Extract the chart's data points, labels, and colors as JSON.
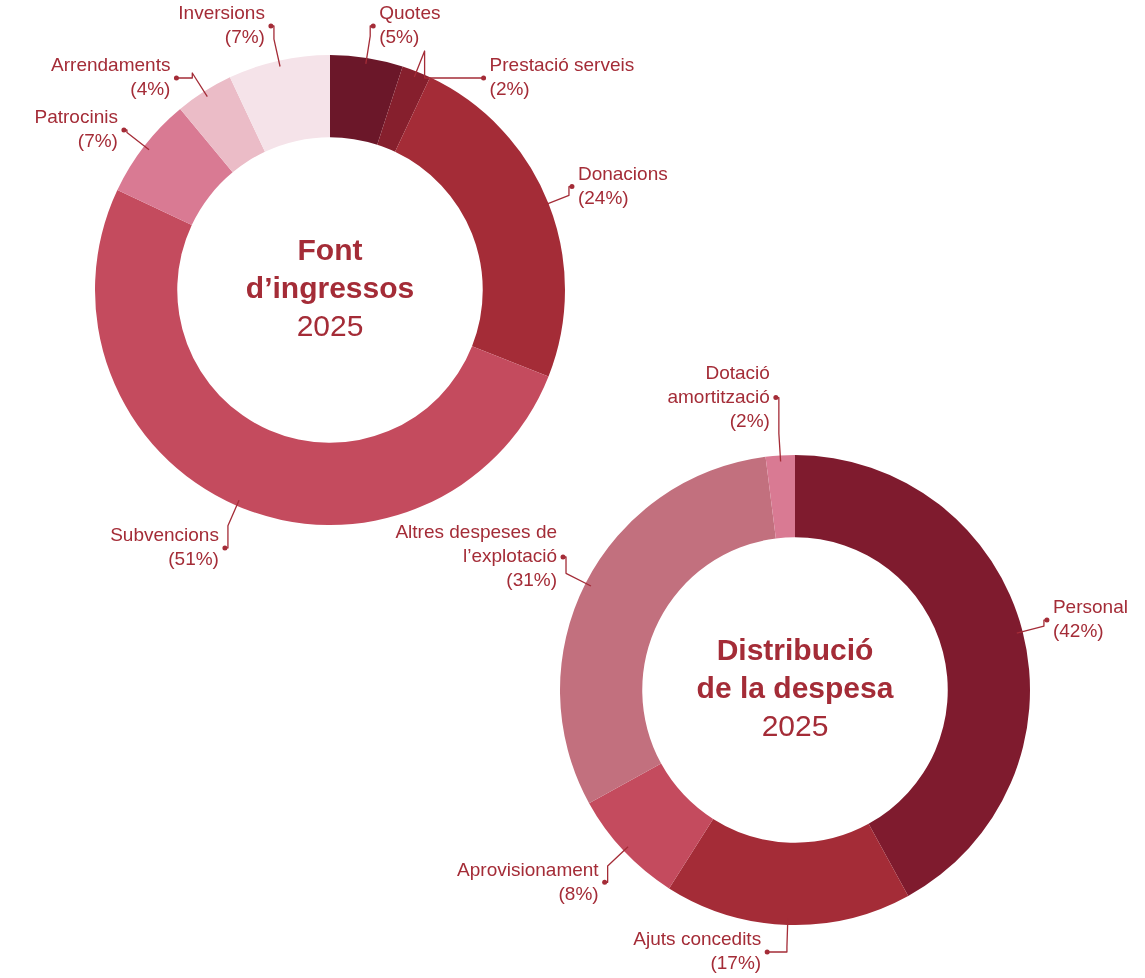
{
  "chart_data": [
    {
      "type": "donut",
      "title": "Font d’ingressos",
      "subtitle": "2025",
      "categories": [
        "Quotes",
        "Prestació serveis",
        "Donacions",
        "Subvencions",
        "Patrocinis",
        "Arrendaments",
        "Inversions"
      ],
      "values": [
        5,
        2,
        24,
        51,
        7,
        4,
        7
      ],
      "value_labels": [
        "(5%)",
        "(2%)",
        "(24%)",
        "(51%)",
        "(7%)",
        "(4%)",
        "(7%)"
      ],
      "colors": [
        "#6b1729",
        "#861f2d",
        "#a42c37",
        "#c44b5e",
        "#d97a93",
        "#ebbcc7",
        "#f5e3e9"
      ]
    },
    {
      "type": "donut",
      "title": "Distribució de la despesa",
      "subtitle": "2025",
      "categories": [
        "Personal",
        "Ajuts concedits",
        "Aprovisionament",
        "Altres despeses de l’explotació",
        "Dotació amortització"
      ],
      "values": [
        42,
        17,
        8,
        31,
        2
      ],
      "value_labels": [
        "(42%)",
        "(17%)",
        "(8%)",
        "(31%)",
        "(2%)"
      ],
      "colors": [
        "#7f1b2e",
        "#a42c37",
        "#c44b5e",
        "#c2707e",
        "#d97a93"
      ]
    }
  ]
}
